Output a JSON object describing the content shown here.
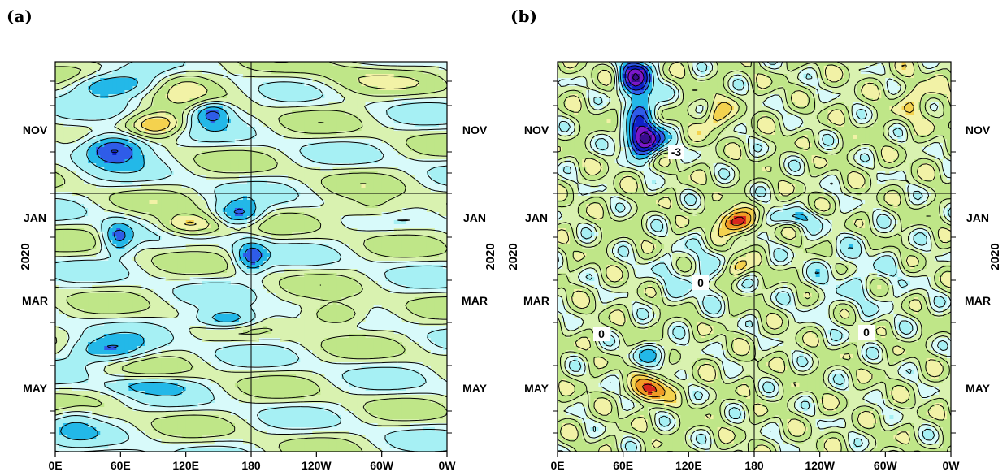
{
  "chart_data": [
    {
      "panel": "(a)",
      "type": "heatmap",
      "x_ticks": [
        "0E",
        "60E",
        "120E",
        "180",
        "120W",
        "60W",
        "0W"
      ],
      "y_ticks": [
        "NOV",
        "JAN",
        "MAR",
        "MAY"
      ],
      "ylabel": "2020",
      "grid": "vertical line at 180 and horizontal line at January 1",
      "colormap": [
        "#3a0d8f",
        "#7b18c8",
        "#1020c8",
        "#2f5ce8",
        "#23b8e8",
        "#a6f0f4",
        "#d8fafa",
        "#d9f2b0",
        "#bfe688",
        "#f2f2a6",
        "#f4d24e",
        "#f09b25",
        "#d9271f"
      ],
      "contour_labels": []
    },
    {
      "panel": "(b)",
      "type": "heatmap",
      "x_ticks": [
        "0E",
        "60E",
        "120E",
        "180",
        "120W",
        "60W",
        "0W"
      ],
      "y_ticks": [
        "NOV",
        "JAN",
        "MAR",
        "MAY"
      ],
      "ylabel": "2020",
      "grid": "vertical line at 180 and horizontal line at January 1",
      "colormap": [
        "#3a0d8f",
        "#7b18c8",
        "#1020c8",
        "#2f5ce8",
        "#23b8e8",
        "#a6f0f4",
        "#d8fafa",
        "#d9f2b0",
        "#bfe688",
        "#f2f2a6",
        "#f4d24e",
        "#f09b25",
        "#d9271f"
      ],
      "contour_labels": [
        "-3",
        "0",
        "0",
        "0"
      ]
    }
  ]
}
